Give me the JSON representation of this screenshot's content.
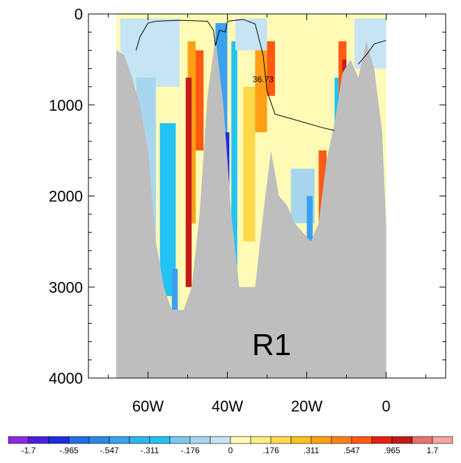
{
  "chart_data": {
    "type": "heatmap",
    "title": "",
    "panel_label": "R1",
    "xlabel": "",
    "ylabel": "",
    "x_units": "degrees longitude (negative = W)",
    "y_units": "depth (m), increasing downward",
    "xlim": [
      -75,
      15
    ],
    "ylim": [
      4000,
      0
    ],
    "x_ticks": [
      {
        "value": -60,
        "label": "60W"
      },
      {
        "value": -40,
        "label": "40W"
      },
      {
        "value": -20,
        "label": "20W"
      },
      {
        "value": 0,
        "label": "0"
      }
    ],
    "y_ticks": [
      {
        "value": 0,
        "label": "0"
      },
      {
        "value": 1000,
        "label": "1000"
      },
      {
        "value": 2000,
        "label": "2000"
      },
      {
        "value": 3000,
        "label": "3000"
      },
      {
        "value": 4000,
        "label": "4000"
      }
    ],
    "bathymetry_color": "#bebebe",
    "bathymetry": [
      [
        -68,
        400
      ],
      [
        -66,
        450
      ],
      [
        -64,
        700
      ],
      [
        -62,
        1000
      ],
      [
        -60,
        1500
      ],
      [
        -58,
        2500
      ],
      [
        -56,
        3000
      ],
      [
        -54,
        3250
      ],
      [
        -51,
        3250
      ],
      [
        -49,
        3000
      ],
      [
        -47,
        2200
      ],
      [
        -45,
        900
      ],
      [
        -43,
        250
      ],
      [
        -41,
        1000
      ],
      [
        -39,
        2200
      ],
      [
        -37,
        3000
      ],
      [
        -33,
        3000
      ],
      [
        -31,
        2200
      ],
      [
        -29,
        1500
      ],
      [
        -27,
        2000
      ],
      [
        -25,
        2100
      ],
      [
        -23,
        2300
      ],
      [
        -21,
        2400
      ],
      [
        -19,
        2500
      ],
      [
        -17,
        2300
      ],
      [
        -15,
        1600
      ],
      [
        -13,
        1200
      ],
      [
        -11,
        650
      ],
      [
        -9,
        500
      ],
      [
        -7,
        700
      ],
      [
        -5,
        300
      ],
      [
        -3,
        600
      ],
      [
        -1,
        1300
      ],
      [
        0,
        2300
      ]
    ],
    "anomaly_patches": [
      {
        "x0": -67,
        "x1": -52,
        "y0": 50,
        "y1": 800,
        "value": -0.05
      },
      {
        "x0": -63,
        "x1": -58,
        "y0": 700,
        "y1": 2500,
        "value": -0.176
      },
      {
        "x0": -57,
        "x1": -53,
        "y0": 1200,
        "y1": 3100,
        "value": -0.311
      },
      {
        "x0": -54,
        "x1": -52.5,
        "y0": 2800,
        "y1": 3250,
        "value": -0.547
      },
      {
        "x0": -50,
        "x1": -48,
        "y0": 300,
        "y1": 2300,
        "value": 0.311
      },
      {
        "x0": -50.5,
        "x1": -49,
        "y0": 700,
        "y1": 3000,
        "value": 0.965
      },
      {
        "x0": -48,
        "x1": -46,
        "y0": 400,
        "y1": 1500,
        "value": 0.547
      },
      {
        "x0": -43,
        "x1": -40,
        "y0": 100,
        "y1": 2200,
        "value": -0.547
      },
      {
        "x0": -41,
        "x1": -39.5,
        "y0": 1300,
        "y1": 2300,
        "value": -1.2
      },
      {
        "x0": -39,
        "x1": -37.5,
        "y0": 300,
        "y1": 3000,
        "value": -0.311
      },
      {
        "x0": -38,
        "x1": -30,
        "y0": 50,
        "y1": 400,
        "value": -0.05
      },
      {
        "x0": -36,
        "x1": -33,
        "y0": 800,
        "y1": 2500,
        "value": 0.176
      },
      {
        "x0": -33,
        "x1": -30,
        "y0": 400,
        "y1": 1300,
        "value": 0.311
      },
      {
        "x0": -30,
        "x1": -28,
        "y0": 300,
        "y1": 900,
        "value": 0.547
      },
      {
        "x0": -24,
        "x1": -18,
        "y0": 1700,
        "y1": 2300,
        "value": -0.176
      },
      {
        "x0": -20,
        "x1": -18.5,
        "y0": 2000,
        "y1": 2500,
        "value": -0.547
      },
      {
        "x0": -17,
        "x1": -15,
        "y0": 1500,
        "y1": 2300,
        "value": 0.547
      },
      {
        "x0": -16,
        "x1": -15,
        "y0": 2000,
        "y1": 2300,
        "value": 0.965
      },
      {
        "x0": -12,
        "x1": -10,
        "y0": 300,
        "y1": 1200,
        "value": 0.547
      },
      {
        "x0": -11,
        "x1": -10,
        "y0": 500,
        "y1": 1000,
        "value": 0.965
      },
      {
        "x0": -13,
        "x1": -12,
        "y0": 700,
        "y1": 1500,
        "value": -0.311
      },
      {
        "x0": -8,
        "x1": 0,
        "y0": 50,
        "y1": 600,
        "value": -0.05
      }
    ],
    "contour": {
      "label": "36.73",
      "label_at": [
        -31,
        750
      ],
      "segments": [
        [
          [
            -63,
            400
          ],
          [
            -62,
            250
          ],
          [
            -60,
            100
          ],
          [
            -58,
            80
          ],
          [
            -52,
            70
          ],
          [
            -45,
            80
          ],
          [
            -43.5,
            180
          ],
          [
            -43,
            350
          ],
          [
            -42,
            180
          ],
          [
            -40.5,
            200
          ],
          [
            -40,
            80
          ],
          [
            -36,
            60
          ],
          [
            -33,
            110
          ],
          [
            -31,
            450
          ],
          [
            -30,
            850
          ],
          [
            -28,
            1100
          ],
          [
            -24,
            1150
          ],
          [
            -20,
            1200
          ],
          [
            -16,
            1250
          ],
          [
            -13,
            1280
          ]
        ],
        [
          [
            -7,
            550
          ],
          [
            -5,
            450
          ],
          [
            -3,
            330
          ],
          [
            0,
            290
          ]
        ]
      ]
    },
    "colorbar": {
      "labels": [
        "-1.7",
        "-.965",
        "-.547",
        "-.311",
        "-.176",
        "0",
        ".176",
        ".311",
        ".547",
        ".965",
        "1.7"
      ],
      "levels": [
        -1.7,
        -1.2,
        -0.965,
        -0.75,
        -0.547,
        -0.43,
        -0.311,
        -0.24,
        -0.176,
        -0.09,
        0,
        0.09,
        0.176,
        0.24,
        0.311,
        0.43,
        0.547,
        0.75,
        0.965,
        1.2,
        1.7
      ],
      "colors": [
        "#8b2be2",
        "#4b1fe0",
        "#1f2ce0",
        "#1f6fe6",
        "#2a8ae8",
        "#3aa1ef",
        "#2bb6f2",
        "#24c2f2",
        "#7fc7ea",
        "#a8d6ef",
        "#c7e4f4",
        "#fffbb6",
        "#ffef80",
        "#ffd84a",
        "#ffbf1e",
        "#ffa015",
        "#ff8018",
        "#ff5a14",
        "#e81f12",
        "#c41a1a",
        "#e8726b",
        "#f7a5a1"
      ]
    }
  }
}
